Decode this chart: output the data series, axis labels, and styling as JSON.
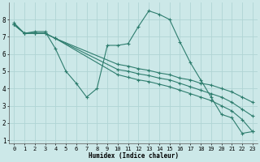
{
  "xlabel": "Humidex (Indice chaleur)",
  "bg_color": "#cce8e8",
  "grid_color": "#b0d4d4",
  "line_color": "#2e7d6e",
  "xlim": [
    -0.5,
    23.5
  ],
  "ylim": [
    0.8,
    9.0
  ],
  "yticks": [
    1,
    2,
    3,
    4,
    5,
    6,
    7,
    8
  ],
  "xticks": [
    0,
    1,
    2,
    3,
    4,
    5,
    6,
    7,
    8,
    9,
    10,
    11,
    12,
    13,
    14,
    15,
    16,
    17,
    18,
    19,
    20,
    21,
    22,
    23
  ],
  "lines": [
    {
      "x": [
        0,
        1,
        2,
        3,
        4,
        5,
        6,
        7,
        8,
        9,
        10,
        11,
        12,
        13,
        14,
        15,
        16,
        17,
        18,
        19,
        20,
        21,
        22,
        23
      ],
      "y": [
        7.8,
        7.2,
        7.3,
        7.3,
        6.3,
        5.0,
        4.3,
        3.5,
        4.0,
        6.5,
        6.5,
        6.6,
        7.6,
        8.5,
        8.3,
        8.0,
        6.7,
        5.5,
        4.5,
        3.5,
        2.5,
        2.3,
        1.4,
        1.5
      ]
    },
    {
      "x": [
        0,
        1,
        2,
        3,
        4,
        10,
        11,
        12,
        13,
        14,
        15,
        16,
        17,
        18,
        19,
        20,
        21,
        22,
        23
      ],
      "y": [
        7.7,
        7.2,
        7.2,
        7.2,
        6.9,
        5.4,
        5.3,
        5.15,
        5.05,
        4.9,
        4.8,
        4.6,
        4.5,
        4.3,
        4.2,
        4.0,
        3.8,
        3.5,
        3.2
      ]
    },
    {
      "x": [
        0,
        1,
        2,
        3,
        4,
        10,
        11,
        12,
        13,
        14,
        15,
        16,
        17,
        18,
        19,
        20,
        21,
        22,
        23
      ],
      "y": [
        7.7,
        7.2,
        7.2,
        7.2,
        6.9,
        5.1,
        5.0,
        4.85,
        4.75,
        4.6,
        4.5,
        4.3,
        4.1,
        3.9,
        3.7,
        3.5,
        3.2,
        2.8,
        2.4
      ]
    },
    {
      "x": [
        0,
        1,
        2,
        3,
        4,
        10,
        11,
        12,
        13,
        14,
        15,
        16,
        17,
        18,
        19,
        20,
        21,
        22,
        23
      ],
      "y": [
        7.7,
        7.2,
        7.2,
        7.2,
        6.9,
        4.8,
        4.65,
        4.5,
        4.4,
        4.25,
        4.1,
        3.9,
        3.7,
        3.5,
        3.3,
        3.0,
        2.7,
        2.2,
        1.5
      ]
    }
  ]
}
